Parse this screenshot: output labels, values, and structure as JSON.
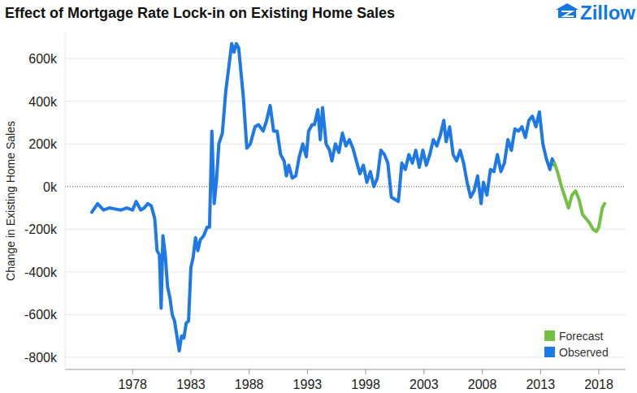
{
  "chart_data": {
    "type": "line",
    "title": "Effect of Mortgage Rate Lock-in on Existing Home Sales",
    "y_label": "Change in Existing Home Sales",
    "logo_text": "Zillow",
    "xlim": [
      1972.2,
      2020.3
    ],
    "ylim": [
      -857000,
      722000
    ],
    "xticks": [
      1978,
      1983,
      1988,
      1993,
      1998,
      2003,
      2008,
      2013,
      2018
    ],
    "yticks": [
      {
        "value": -800000,
        "label": "-800k"
      },
      {
        "value": -600000,
        "label": "-600k"
      },
      {
        "value": -400000,
        "label": "-400k"
      },
      {
        "value": -200000,
        "label": "-200k"
      },
      {
        "value": 0,
        "label": "0k"
      },
      {
        "value": 200000,
        "label": "200k"
      },
      {
        "value": 400000,
        "label": "400k"
      },
      {
        "value": 600000,
        "label": "600k"
      }
    ],
    "grid": true,
    "legend": "lower right",
    "series": [
      {
        "name": "Forecast",
        "color": "#74c043",
        "x": [
          2014.2,
          2014.5,
          2014.8,
          2015.1,
          2015.4,
          2015.7,
          2016.0,
          2016.3,
          2016.6,
          2016.9,
          2017.2,
          2017.5,
          2017.8,
          2018.0,
          2018.3,
          2018.5
        ],
        "values": [
          110000,
          60000,
          0,
          -50000,
          -100000,
          -40000,
          -20000,
          -60000,
          -130000,
          -150000,
          -170000,
          -200000,
          -210000,
          -190000,
          -100000,
          -80000
        ]
      },
      {
        "name": "Observed",
        "color": "#1e78e6",
        "x": [
          1974.5,
          1975.0,
          1975.5,
          1976.0,
          1976.5,
          1977.0,
          1977.5,
          1978.0,
          1978.3,
          1978.7,
          1979.0,
          1979.3,
          1979.6,
          1979.9,
          1980.1,
          1980.3,
          1980.45,
          1980.6,
          1980.8,
          1981.0,
          1981.2,
          1981.4,
          1981.6,
          1981.8,
          1982.0,
          1982.2,
          1982.4,
          1982.6,
          1982.8,
          1983.0,
          1983.2,
          1983.4,
          1983.6,
          1983.8,
          1984.1,
          1984.4,
          1984.6,
          1984.8,
          1985.0,
          1985.2,
          1985.4,
          1985.7,
          1986.0,
          1986.3,
          1986.5,
          1986.7,
          1986.9,
          1987.1,
          1987.5,
          1987.8,
          1988.1,
          1988.5,
          1988.8,
          1989.2,
          1989.5,
          1989.8,
          1990.1,
          1990.4,
          1990.7,
          1991.0,
          1991.2,
          1991.4,
          1991.7,
          1992.0,
          1992.3,
          1992.6,
          1992.9,
          1993.1,
          1993.4,
          1993.6,
          1993.9,
          1994.1,
          1994.3,
          1994.6,
          1994.9,
          1995.1,
          1995.4,
          1995.7,
          1996.0,
          1996.3,
          1996.6,
          1996.9,
          1997.2,
          1997.5,
          1997.8,
          1998.1,
          1998.4,
          1998.7,
          1999.0,
          1999.3,
          1999.6,
          1999.9,
          2000.2,
          2000.5,
          2000.8,
          2001.1,
          2001.4,
          2001.7,
          2002.0,
          2002.3,
          2002.6,
          2002.9,
          2003.2,
          2003.5,
          2003.8,
          2004.1,
          2004.4,
          2004.7,
          2004.9,
          2005.2,
          2005.5,
          2005.8,
          2006.1,
          2006.4,
          2006.7,
          2007.0,
          2007.3,
          2007.6,
          2007.9,
          2008.1,
          2008.4,
          2008.7,
          2009.0,
          2009.3,
          2009.6,
          2009.9,
          2010.2,
          2010.5,
          2010.8,
          2011.1,
          2011.4,
          2011.7,
          2012.0,
          2012.3,
          2012.6,
          2012.9,
          2013.2,
          2013.5,
          2013.8,
          2014.0,
          2014.2
        ],
        "values": [
          -120000,
          -80000,
          -110000,
          -100000,
          -105000,
          -110000,
          -100000,
          -110000,
          -70000,
          -110000,
          -100000,
          -80000,
          -90000,
          -150000,
          -300000,
          -320000,
          -570000,
          -230000,
          -320000,
          -470000,
          -520000,
          -600000,
          -630000,
          -700000,
          -770000,
          -700000,
          -710000,
          -640000,
          -630000,
          -380000,
          -330000,
          -240000,
          -300000,
          -250000,
          -230000,
          -190000,
          -190000,
          260000,
          -80000,
          30000,
          200000,
          250000,
          450000,
          580000,
          670000,
          630000,
          670000,
          650000,
          420000,
          180000,
          200000,
          280000,
          290000,
          260000,
          310000,
          380000,
          260000,
          260000,
          150000,
          120000,
          50000,
          100000,
          40000,
          50000,
          140000,
          200000,
          140000,
          260000,
          290000,
          290000,
          360000,
          220000,
          370000,
          200000,
          170000,
          120000,
          200000,
          160000,
          250000,
          190000,
          220000,
          180000,
          120000,
          60000,
          100000,
          20000,
          70000,
          0,
          40000,
          170000,
          150000,
          110000,
          -50000,
          -60000,
          -70000,
          110000,
          80000,
          150000,
          110000,
          170000,
          90000,
          170000,
          100000,
          150000,
          220000,
          190000,
          240000,
          310000,
          210000,
          280000,
          150000,
          120000,
          170000,
          110000,
          20000,
          -50000,
          -20000,
          50000,
          -80000,
          20000,
          -40000,
          80000,
          70000,
          150000,
          70000,
          110000,
          220000,
          170000,
          270000,
          260000,
          280000,
          230000,
          310000,
          330000,
          280000,
          350000,
          200000,
          130000,
          80000,
          130000,
          100000
        ]
      }
    ]
  }
}
